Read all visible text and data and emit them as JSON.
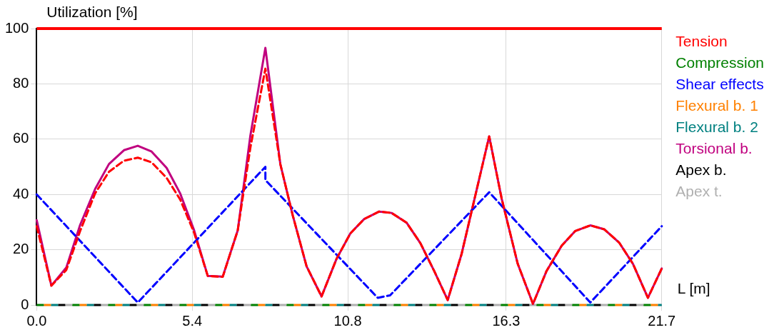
{
  "chart_data": {
    "type": "line",
    "xlabel": "L [m]",
    "ylabel": "Utilization [%]",
    "xlim": [
      0,
      21.7
    ],
    "ylim": [
      0,
      100
    ],
    "xticks": [
      {
        "value": 0,
        "label": "0.0"
      },
      5.4,
      10.8,
      16.3,
      21.7
    ],
    "yticks": [
      0,
      20,
      40,
      60,
      80,
      100
    ],
    "grid": true,
    "legend": "right",
    "marker": "none",
    "ref_lines": [
      {
        "axis": "y",
        "value": 100,
        "color": "#ff0000"
      }
    ],
    "series": [
      {
        "name": "Tension",
        "color": "#ff0000",
        "line_style": "dashed",
        "x": [
          0,
          0.51,
          1.03,
          1.51,
          2.03,
          2.51,
          3.03,
          3.51,
          3.99,
          4.51,
          4.98,
          5.46,
          5.94,
          6.46,
          6.98,
          7.42,
          7.94,
          8.46,
          8.89,
          9.37,
          9.89,
          10.41,
          10.89,
          11.37,
          11.89,
          12.32,
          12.84,
          13.32,
          13.8,
          14.27,
          14.75,
          15.71,
          16.14,
          16.7,
          17.23,
          17.7,
          18.23,
          18.7,
          19.22,
          19.7,
          20.22,
          20.7,
          21.22,
          21.7
        ],
        "values": [
          28.5,
          7,
          12.7,
          26.8,
          40.4,
          48.2,
          52.2,
          53.3,
          51.6,
          46,
          38.2,
          26.3,
          10.5,
          10.2,
          27,
          57,
          85.5,
          50.9,
          32.4,
          14,
          3.1,
          16.7,
          25.9,
          31.1,
          33.8,
          33.3,
          29.8,
          22.4,
          12.3,
          1.8,
          18.4,
          61,
          38.6,
          14.9,
          0.4,
          12.3,
          21.5,
          26.8,
          28.8,
          27.4,
          22.6,
          14.9,
          2.6,
          13.2
        ]
      },
      {
        "name": "Compression",
        "color": "#008000",
        "line_style": "dashed",
        "x": [
          0,
          21.7
        ],
        "values": [
          0,
          0
        ]
      },
      {
        "name": "Shear effects",
        "color": "#0000ff",
        "line_style": "dashed",
        "x": [
          0,
          3.51,
          7.94,
          7.94,
          11.84,
          12.27,
          15.71,
          19.22,
          21.7
        ],
        "values": [
          40,
          0.9,
          50,
          45.2,
          2.6,
          3.5,
          40.8,
          0.9,
          28.5
        ]
      },
      {
        "name": "Flexural b. 1",
        "color": "#ff8000",
        "line_style": "dashed",
        "x": [
          0,
          21.7
        ],
        "values": [
          0,
          0
        ]
      },
      {
        "name": "Flexural b. 2",
        "color": "#008080",
        "line_style": "dashed",
        "x": [
          0,
          21.7
        ],
        "values": [
          0,
          0
        ]
      },
      {
        "name": "Torsional b.",
        "color": "#c0007f",
        "line_style": "solid",
        "x": [
          0,
          0.51,
          1.03,
          1.51,
          2.03,
          2.51,
          3.03,
          3.51,
          3.99,
          4.51,
          4.98,
          5.46,
          5.94,
          6.46,
          6.98,
          7.42,
          7.94,
          8.46,
          8.89,
          9.37,
          9.89,
          10.41,
          10.89,
          11.37,
          11.89,
          12.32,
          12.84,
          13.32,
          13.8,
          14.27,
          14.75,
          15.71,
          16.14,
          16.7,
          17.23,
          17.7,
          18.23,
          18.7,
          19.22,
          19.7,
          20.22,
          20.7,
          21.22,
          21.7
        ],
        "values": [
          30.7,
          7,
          13.6,
          29,
          42,
          51,
          56,
          57.6,
          55.5,
          49.6,
          40.4,
          27.2,
          10.5,
          10.3,
          27,
          61.4,
          93,
          50.9,
          32.4,
          14,
          3.1,
          16.7,
          25.9,
          31.1,
          33.8,
          33.3,
          29.8,
          22.4,
          12.3,
          1.8,
          18.4,
          61,
          38.6,
          14.9,
          0.4,
          12.3,
          21.5,
          26.8,
          28.8,
          27.4,
          22.6,
          14.9,
          2.6,
          13.2
        ]
      },
      {
        "name": "Apex b.",
        "color": "#000000",
        "line_style": "dashed",
        "x": [
          0,
          21.7
        ],
        "values": [
          0,
          0
        ]
      },
      {
        "name": "Apex t.",
        "color": "#b0b0b0",
        "line_style": "dashed",
        "x": [
          0,
          21.7
        ],
        "values": [
          0,
          0
        ]
      }
    ]
  }
}
